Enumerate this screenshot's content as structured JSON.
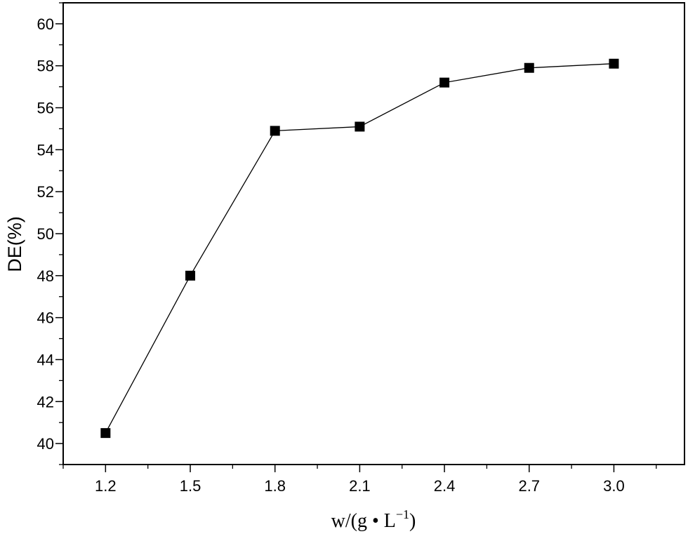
{
  "chart_data": {
    "type": "line",
    "xlabel": {
      "main": "w/(g • L",
      "sup": "−1",
      "close": ")"
    },
    "ylabel": "DE(%)",
    "xlim": [
      1.05,
      3.25
    ],
    "ylim": [
      39,
      61
    ],
    "x_ticks": [
      "1.2",
      "1.5",
      "1.8",
      "2.1",
      "2.4",
      "2.7",
      "3.0"
    ],
    "y_ticks": [
      "40",
      "42",
      "44",
      "46",
      "48",
      "50",
      "52",
      "54",
      "56",
      "58",
      "60"
    ],
    "series": [
      {
        "marker": "square",
        "color": "#000000",
        "x": [
          1.2,
          1.5,
          1.8,
          2.1,
          2.4,
          2.7,
          3.0
        ],
        "y": [
          40.5,
          48.0,
          54.9,
          55.1,
          57.2,
          57.9,
          58.1
        ]
      }
    ]
  }
}
